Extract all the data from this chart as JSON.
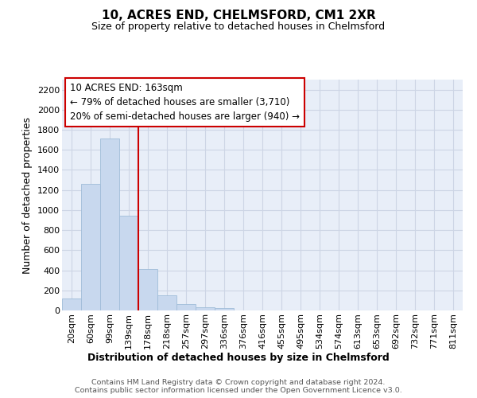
{
  "title": "10, ACRES END, CHELMSFORD, CM1 2XR",
  "subtitle": "Size of property relative to detached houses in Chelmsford",
  "xlabel": "Distribution of detached houses by size in Chelmsford",
  "ylabel": "Number of detached properties",
  "bar_labels": [
    "20sqm",
    "60sqm",
    "99sqm",
    "139sqm",
    "178sqm",
    "218sqm",
    "257sqm",
    "297sqm",
    "336sqm",
    "376sqm",
    "416sqm",
    "455sqm",
    "495sqm",
    "534sqm",
    "574sqm",
    "613sqm",
    "653sqm",
    "692sqm",
    "732sqm",
    "771sqm",
    "811sqm"
  ],
  "bar_values": [
    117,
    1265,
    1715,
    940,
    410,
    150,
    65,
    35,
    22,
    0,
    0,
    0,
    0,
    0,
    0,
    0,
    0,
    0,
    0,
    0,
    0
  ],
  "bar_color": "#c8d8ee",
  "bar_edge_color": "#a0bcd8",
  "vline_color": "#cc0000",
  "annotation_text": "10 ACRES END: 163sqm\n← 79% of detached houses are smaller (3,710)\n20% of semi-detached houses are larger (940) →",
  "annotation_box_facecolor": "white",
  "annotation_box_edgecolor": "#cc0000",
  "ylim": [
    0,
    2300
  ],
  "yticks": [
    0,
    200,
    400,
    600,
    800,
    1000,
    1200,
    1400,
    1600,
    1800,
    2000,
    2200
  ],
  "bg_color": "#ffffff",
  "plot_bg_color": "#e8eef8",
  "grid_color": "#cdd5e5",
  "title_fontsize": 11,
  "subtitle_fontsize": 9,
  "axis_label_fontsize": 9,
  "tick_fontsize": 8,
  "annotation_fontsize": 8.5,
  "footer_fontsize": 6.8,
  "footer_text": "Contains HM Land Registry data © Crown copyright and database right 2024.\nContains public sector information licensed under the Open Government Licence v3.0.",
  "vline_pos": 3.5
}
